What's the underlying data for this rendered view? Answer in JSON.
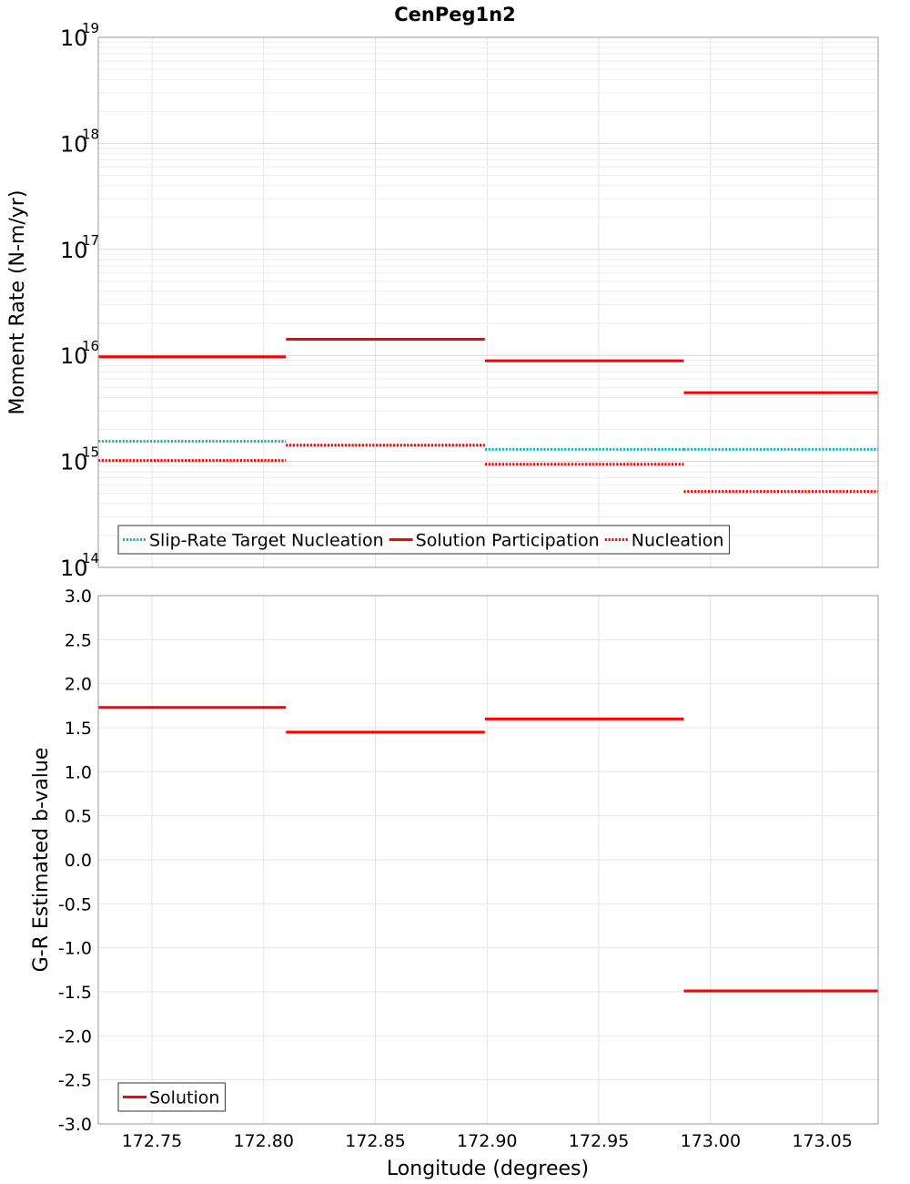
{
  "chart_data": {
    "title": "CenPeg1n2",
    "xlabel": "Longitude (degrees)",
    "xlim": [
      172.726,
      173.075
    ],
    "xticks": [
      172.75,
      172.8,
      172.85,
      172.9,
      172.95,
      173.0,
      173.05
    ],
    "xtick_labels": [
      "172.75",
      "172.80",
      "172.85",
      "172.90",
      "172.95",
      "173.00",
      "173.05"
    ],
    "subplots": [
      {
        "type": "line",
        "yscale": "log",
        "ylabel": "Moment Rate (N-m/yr)",
        "ylim": [
          100000000000000.0,
          1e+19
        ],
        "ytick_mantissa": "10",
        "ytick_exponents": [
          "14",
          "15",
          "16",
          "17",
          "18",
          "19"
        ],
        "grid": true,
        "legend_position": "bottom-left",
        "series": [
          {
            "name": "Slip-Rate Target Nucleation",
            "color": "#19b7b7",
            "style": "dotted",
            "segments": [
              {
                "x": [
                  172.726,
                  172.81
                ],
                "y": 1550000000000000.0
              },
              {
                "x": [
                  172.81,
                  172.899
                ],
                "y": 1420000000000000.0
              },
              {
                "x": [
                  172.899,
                  172.988
                ],
                "y": 1300000000000000.0
              },
              {
                "x": [
                  172.988,
                  173.075
                ],
                "y": 1300000000000000.0
              }
            ]
          },
          {
            "name": "Solution Participation",
            "color": "#ff0000",
            "style": "solid",
            "segments": [
              {
                "x": [
                  172.726,
                  172.81
                ],
                "y": 9700000000000000.0
              },
              {
                "x": [
                  172.81,
                  172.899
                ],
                "y": 1.42e+16
              },
              {
                "x": [
                  172.899,
                  172.988
                ],
                "y": 8900000000000000.0
              },
              {
                "x": [
                  172.988,
                  173.075
                ],
                "y": 4450000000000000.0
              }
            ]
          },
          {
            "name": "Nucleation",
            "color": "#ff0000",
            "style": "dotted",
            "segments": [
              {
                "x": [
                  172.726,
                  172.81
                ],
                "y": 1020000000000000.0
              },
              {
                "x": [
                  172.81,
                  172.899
                ],
                "y": 1420000000000000.0
              },
              {
                "x": [
                  172.899,
                  172.988
                ],
                "y": 940000000000000.0
              },
              {
                "x": [
                  172.988,
                  173.075
                ],
                "y": 520000000000000.0
              }
            ]
          }
        ]
      },
      {
        "type": "line",
        "yscale": "linear",
        "ylabel": "G-R Estimated b-value",
        "ylim": [
          -3.0,
          3.0
        ],
        "yticks": [
          3.0,
          2.5,
          2.0,
          1.5,
          1.0,
          0.5,
          0.0,
          -0.5,
          -1.0,
          -1.5,
          -2.0,
          -2.5,
          -3.0
        ],
        "ytick_labels": [
          "3.0",
          "2.5",
          "2.0",
          "1.5",
          "1.0",
          "0.5",
          "0.0",
          "-0.5",
          "-1.0",
          "-1.5",
          "-2.0",
          "-2.5",
          "-3.0"
        ],
        "grid": true,
        "legend_position": "bottom-left",
        "series": [
          {
            "name": "Solution",
            "color": "#ff0000",
            "style": "solid",
            "segments": [
              {
                "x": [
                  172.726,
                  172.81
                ],
                "y": 1.73
              },
              {
                "x": [
                  172.81,
                  172.899
                ],
                "y": 1.45
              },
              {
                "x": [
                  172.899,
                  172.988
                ],
                "y": 1.6
              },
              {
                "x": [
                  172.988,
                  173.075
                ],
                "y": -1.49
              }
            ]
          }
        ]
      }
    ]
  }
}
